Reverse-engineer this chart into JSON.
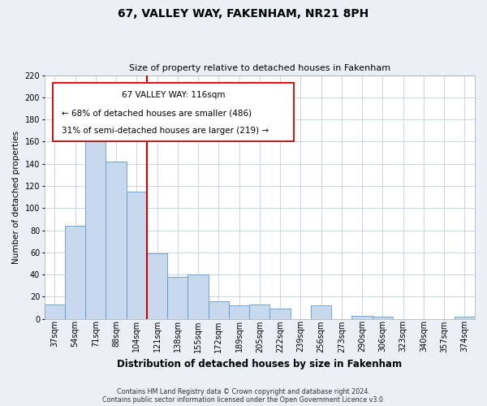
{
  "title": "67, VALLEY WAY, FAKENHAM, NR21 8PH",
  "subtitle": "Size of property relative to detached houses in Fakenham",
  "xlabel": "Distribution of detached houses by size in Fakenham",
  "ylabel": "Number of detached properties",
  "bin_labels": [
    "37sqm",
    "54sqm",
    "71sqm",
    "88sqm",
    "104sqm",
    "121sqm",
    "138sqm",
    "155sqm",
    "172sqm",
    "189sqm",
    "205sqm",
    "222sqm",
    "239sqm",
    "256sqm",
    "273sqm",
    "290sqm",
    "306sqm",
    "323sqm",
    "340sqm",
    "357sqm",
    "374sqm"
  ],
  "bar_heights": [
    13,
    84,
    170,
    142,
    115,
    59,
    38,
    40,
    16,
    12,
    13,
    9,
    0,
    12,
    0,
    3,
    2,
    0,
    0,
    0,
    2
  ],
  "bar_color": "#c9d9ed",
  "bar_edgecolor": "#5b9bd5",
  "vline_x_index": 5,
  "vline_color": "#cc0000",
  "ylim": [
    0,
    220
  ],
  "yticks": [
    0,
    20,
    40,
    60,
    80,
    100,
    120,
    140,
    160,
    180,
    200,
    220
  ],
  "annotation_line1": "67 VALLEY WAY: 116sqm",
  "annotation_line2": "← 68% of detached houses are smaller (486)",
  "annotation_line3": "31% of semi-detached houses are larger (219) →",
  "annotation_box_facecolor": "#ffffff",
  "annotation_box_edgecolor": "#cc0000",
  "footer_line1": "Contains HM Land Registry data © Crown copyright and database right 2024.",
  "footer_line2": "Contains public sector information licensed under the Open Government Licence v3.0.",
  "bg_color": "#eaf0f6",
  "plot_bg_color": "#ffffff",
  "grid_color": "#c0cfe0",
  "title_fontsize": 10,
  "subtitle_fontsize": 8,
  "xlabel_fontsize": 8.5,
  "ylabel_fontsize": 7.5,
  "tick_fontsize": 7,
  "annotation_fontsize": 7.5,
  "footer_fontsize": 5.8
}
